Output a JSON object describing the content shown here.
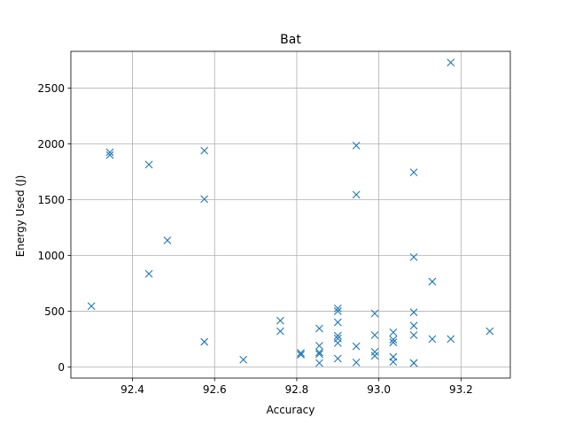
{
  "chart_data": {
    "type": "scatter",
    "title": "Bat",
    "xlabel": "Accuracy",
    "ylabel": "Energy Used (J)",
    "xlim": [
      92.25,
      93.32
    ],
    "ylim": [
      -100,
      2830
    ],
    "xticks": [
      92.4,
      92.6,
      92.8,
      93.0,
      93.2
    ],
    "xtick_labels": [
      "92.4",
      "92.6",
      "92.8",
      "93.0",
      "93.2"
    ],
    "yticks": [
      0,
      500,
      1000,
      1500,
      2000,
      2500
    ],
    "ytick_labels": [
      "0",
      "500",
      "1000",
      "1500",
      "2000",
      "2500"
    ],
    "grid": true,
    "marker": "x",
    "color": "#1f77b4",
    "x": [
      92.3,
      92.345,
      92.345,
      92.44,
      92.44,
      92.485,
      92.575,
      92.575,
      92.575,
      92.67,
      92.76,
      92.76,
      92.81,
      92.81,
      92.855,
      92.855,
      92.855,
      92.855,
      92.855,
      92.9,
      92.9,
      92.9,
      92.9,
      92.9,
      92.9,
      92.9,
      92.945,
      92.945,
      92.945,
      92.945,
      92.99,
      92.99,
      92.99,
      92.99,
      93.035,
      93.035,
      93.035,
      93.035,
      93.035,
      93.085,
      93.085,
      93.085,
      93.085,
      93.085,
      93.085,
      93.085,
      93.13,
      93.13,
      93.175,
      93.175,
      93.27
    ],
    "y": [
      545,
      1925,
      1900,
      1815,
      835,
      1135,
      1940,
      1505,
      225,
      65,
      415,
      320,
      125,
      110,
      345,
      190,
      130,
      115,
      35,
      525,
      500,
      400,
      280,
      255,
      215,
      75,
      1985,
      1545,
      185,
      40,
      480,
      285,
      135,
      100,
      310,
      245,
      220,
      90,
      45,
      1745,
      985,
      490,
      370,
      285,
      35,
      35,
      765,
      250,
      2730,
      250,
      320
    ]
  }
}
